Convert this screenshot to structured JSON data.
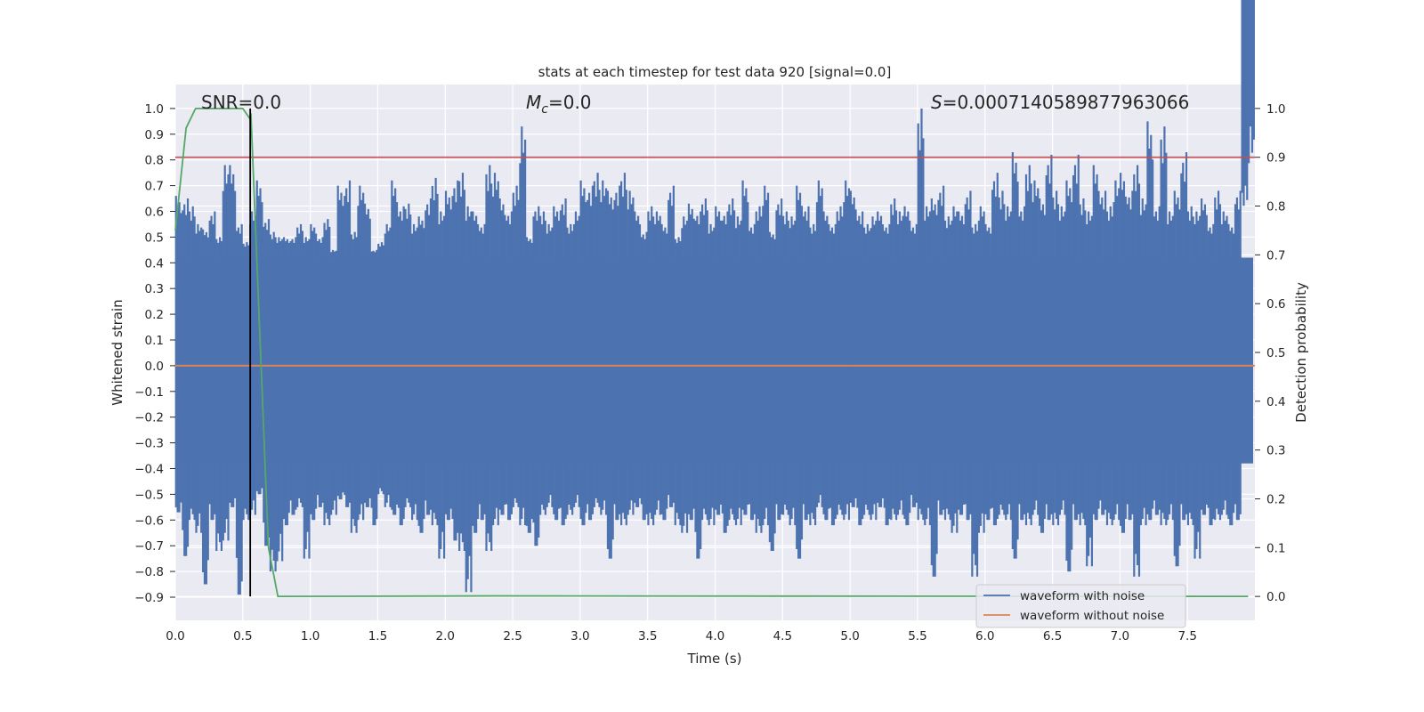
{
  "chart_data": {
    "type": "line",
    "title": "stats at each timestep for test data 920 [signal=0.0]",
    "xlabel": "Time (s)",
    "ylabel": "Whitened strain",
    "ylabel_right": "Detection probability",
    "xlim": [
      0.0,
      8.0
    ],
    "ylim": [
      -0.99,
      1.093
    ],
    "ylim_right": [
      -0.049,
      1.049
    ],
    "xticks": [
      "0.0",
      "0.5",
      "1.0",
      "1.5",
      "2.0",
      "2.5",
      "3.0",
      "3.5",
      "4.0",
      "4.5",
      "5.0",
      "5.5",
      "6.0",
      "6.5",
      "7.0",
      "7.5"
    ],
    "yticks": [
      "1.0",
      "0.9",
      "0.8",
      "0.7",
      "0.6",
      "0.5",
      "0.4",
      "0.3",
      "0.2",
      "0.1",
      "0.0",
      "−0.1",
      "−0.2",
      "−0.3",
      "−0.4",
      "−0.5",
      "−0.6",
      "−0.7",
      "−0.8",
      "−0.9"
    ],
    "yticks_right": [
      "1.0",
      "0.9",
      "0.8",
      "0.7",
      "0.6",
      "0.5",
      "0.4",
      "0.3",
      "0.2",
      "0.1",
      "0.0"
    ],
    "annotations": {
      "snr": "SNR=0.0",
      "mc_symbol": "M",
      "mc_sub": "c",
      "mc_value": "=0.0",
      "s_symbol": "S",
      "s_value": "=0.0007140589877963066"
    },
    "legend": {
      "position": "lower-right",
      "entries": [
        "waveform with noise",
        "waveform without noise"
      ]
    },
    "colors": {
      "noise": "#4c72b0",
      "clean": "#dd8452",
      "prob": "#55a868",
      "threshold": "#c44e52",
      "marker": "#000000"
    },
    "noisy_waveform_envelope": {
      "t_start": 0.0,
      "t_step": 0.05,
      "max": [
        0.66,
        0.65,
        0.62,
        0.55,
        0.53,
        0.6,
        0.5,
        0.78,
        0.78,
        0.55,
        0.48,
        0.6,
        0.72,
        0.57,
        0.52,
        0.5,
        0.5,
        0.5,
        0.55,
        0.5,
        0.55,
        0.5,
        0.57,
        0.45,
        0.7,
        0.72,
        0.52,
        0.7,
        0.63,
        0.45,
        0.48,
        0.55,
        0.72,
        0.62,
        0.63,
        0.55,
        0.58,
        0.65,
        0.73,
        0.6,
        0.68,
        0.72,
        0.75,
        0.62,
        0.6,
        0.55,
        0.78,
        0.75,
        0.65,
        0.6,
        0.7,
        0.93,
        0.5,
        0.62,
        0.6,
        0.55,
        0.62,
        0.65,
        0.55,
        0.6,
        0.72,
        0.7,
        0.75,
        0.72,
        0.68,
        0.7,
        0.75,
        0.68,
        0.6,
        0.52,
        0.62,
        0.6,
        0.55,
        0.7,
        0.5,
        0.58,
        0.63,
        0.6,
        0.65,
        0.55,
        0.62,
        0.6,
        0.65,
        0.58,
        0.72,
        0.55,
        0.62,
        0.7,
        0.52,
        0.65,
        0.6,
        0.58,
        0.7,
        0.62,
        0.55,
        0.72,
        0.6,
        0.55,
        0.62,
        0.72,
        0.68,
        0.6,
        0.55,
        0.58,
        0.6,
        0.55,
        0.65,
        0.6,
        0.62,
        0.55,
        1.0,
        0.62,
        0.65,
        0.7,
        0.58,
        0.62,
        0.6,
        0.68,
        0.55,
        0.62,
        0.55,
        0.75,
        0.68,
        0.62,
        0.83,
        0.62,
        0.78,
        0.72,
        0.65,
        0.82,
        0.68,
        0.62,
        0.72,
        0.82,
        0.65,
        0.6,
        0.78,
        0.68,
        0.62,
        0.72,
        0.75,
        0.68,
        0.78,
        0.65,
        0.95,
        0.62,
        0.93,
        0.6,
        0.68,
        0.83,
        0.62,
        0.6,
        0.65,
        0.55,
        0.68,
        0.6,
        0.55,
        0.68,
        0.7,
        0.93
      ],
      "min": [
        -0.57,
        -0.74,
        -0.6,
        -0.65,
        -0.85,
        -0.6,
        -0.72,
        -0.68,
        -0.55,
        -0.89,
        -0.6,
        -0.58,
        -0.5,
        -0.7,
        -0.8,
        -0.76,
        -0.62,
        -0.58,
        -0.55,
        -0.75,
        -0.6,
        -0.55,
        -0.62,
        -0.58,
        -0.52,
        -0.55,
        -0.65,
        -0.6,
        -0.55,
        -0.62,
        -0.5,
        -0.55,
        -0.58,
        -0.62,
        -0.55,
        -0.6,
        -0.65,
        -0.58,
        -0.62,
        -0.75,
        -0.6,
        -0.68,
        -0.72,
        -0.88,
        -0.65,
        -0.6,
        -0.72,
        -0.62,
        -0.58,
        -0.6,
        -0.55,
        -0.62,
        -0.65,
        -0.7,
        -0.58,
        -0.55,
        -0.6,
        -0.62,
        -0.58,
        -0.55,
        -0.62,
        -0.6,
        -0.55,
        -0.58,
        -0.75,
        -0.6,
        -0.62,
        -0.58,
        -0.55,
        -0.6,
        -0.62,
        -0.58,
        -0.6,
        -0.55,
        -0.62,
        -0.65,
        -0.6,
        -0.75,
        -0.6,
        -0.62,
        -0.58,
        -0.65,
        -0.6,
        -0.62,
        -0.58,
        -0.6,
        -0.65,
        -0.62,
        -0.72,
        -0.6,
        -0.58,
        -0.62,
        -0.75,
        -0.6,
        -0.62,
        -0.55,
        -0.6,
        -0.62,
        -0.58,
        -0.6,
        -0.55,
        -0.62,
        -0.58,
        -0.6,
        -0.55,
        -0.62,
        -0.6,
        -0.58,
        -0.62,
        -0.55,
        -0.6,
        -0.62,
        -0.82,
        -0.58,
        -0.6,
        -0.65,
        -0.58,
        -0.6,
        -0.82,
        -0.65,
        -0.6,
        -0.62,
        -0.58,
        -0.6,
        -0.75,
        -0.6,
        -0.62,
        -0.58,
        -0.65,
        -0.6,
        -0.62,
        -0.58,
        -0.8,
        -0.6,
        -0.62,
        -0.78,
        -0.6,
        -0.58,
        -0.62,
        -0.6,
        -0.65,
        -0.6,
        -0.82,
        -0.62,
        -0.6,
        -0.58,
        -0.62,
        -0.6,
        -0.78,
        -0.6,
        -0.62,
        -0.75,
        -0.58,
        -0.62,
        -0.6,
        -0.58,
        -0.62,
        -0.6
      ],
      "core": [
        -0.38,
        0.42
      ]
    },
    "clean_waveform": {
      "t": [
        0.0,
        8.0
      ],
      "y": [
        0.0,
        0.0
      ]
    },
    "detection_probability": {
      "t": [
        0.0,
        0.08,
        0.15,
        0.5,
        0.55,
        0.56,
        0.69,
        0.76,
        2.35,
        7.95
      ],
      "p": [
        0.75,
        0.96,
        1.0,
        1.0,
        0.98,
        0.99,
        0.1,
        0.0,
        0.001,
        0.0
      ]
    },
    "threshold": 0.9,
    "marker_time": 0.555
  }
}
